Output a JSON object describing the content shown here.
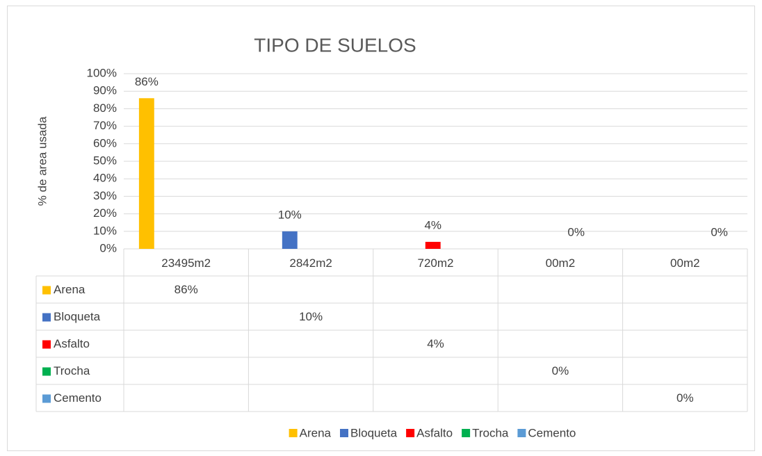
{
  "chart_data": {
    "type": "bar",
    "title": "TIPO DE SUELOS",
    "y_label": "% de area usada",
    "categories": [
      "23495m2",
      "2842m2",
      "720m2",
      "00m2",
      "00m2"
    ],
    "series": [
      {
        "name": "Arena",
        "color": "#ffc000",
        "values": [
          86,
          null,
          null,
          null,
          null
        ],
        "value_labels": [
          "86%",
          null,
          null,
          null,
          null
        ]
      },
      {
        "name": "Bloqueta",
        "color": "#4472c4",
        "values": [
          null,
          10,
          null,
          null,
          null
        ],
        "value_labels": [
          null,
          "10%",
          null,
          null,
          null
        ]
      },
      {
        "name": "Asfalto",
        "color": "#ff0000",
        "values": [
          null,
          null,
          4,
          null,
          null
        ],
        "value_labels": [
          null,
          null,
          "4%",
          null,
          null
        ]
      },
      {
        "name": "Trocha",
        "color": "#00b050",
        "values": [
          null,
          null,
          null,
          0,
          null
        ],
        "value_labels": [
          null,
          null,
          null,
          "0%",
          null
        ]
      },
      {
        "name": "Cemento",
        "color": "#5b9bd5",
        "values": [
          null,
          null,
          null,
          null,
          0
        ],
        "value_labels": [
          null,
          null,
          null,
          null,
          "0%"
        ]
      }
    ],
    "ylim": [
      0,
      100
    ],
    "yticks": [
      {
        "value": 0,
        "label": "0%"
      },
      {
        "value": 10,
        "label": "10%"
      },
      {
        "value": 20,
        "label": "20%"
      },
      {
        "value": 30,
        "label": "30%"
      },
      {
        "value": 40,
        "label": "40%"
      },
      {
        "value": 50,
        "label": "50%"
      },
      {
        "value": 60,
        "label": "60%"
      },
      {
        "value": 70,
        "label": "70%"
      },
      {
        "value": 80,
        "label": "80%"
      },
      {
        "value": 90,
        "label": "90%"
      },
      {
        "value": 100,
        "label": "100%"
      }
    ],
    "grid": true,
    "legend": "bottom"
  }
}
